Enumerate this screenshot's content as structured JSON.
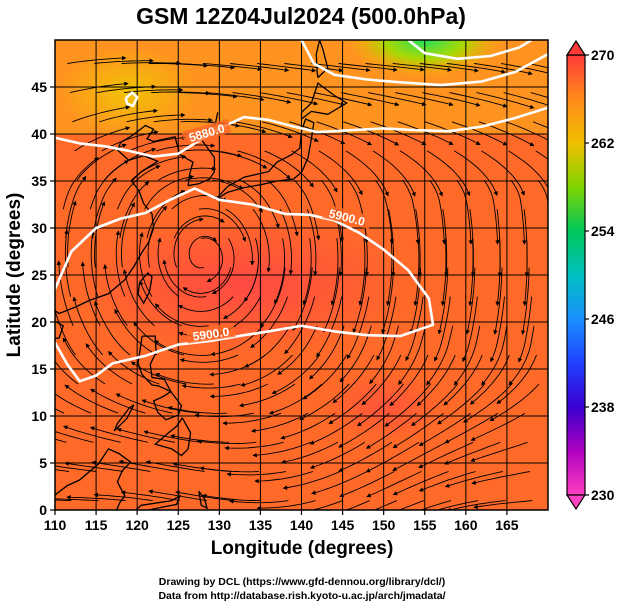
{
  "title": "GSM 12Z04Jul2024 (500.0hPa)",
  "chart_data": {
    "type": "heatmap",
    "title": "GSM 12Z04Jul2024 (500.0hPa)",
    "xlabel": "Longitude (degrees)",
    "ylabel": "Latitude  (degrees)",
    "xlim": [
      110,
      170
    ],
    "ylim": [
      0,
      50
    ],
    "x_ticks": [
      "110",
      "115",
      "120",
      "125",
      "130",
      "135",
      "140",
      "145",
      "150",
      "155",
      "160",
      "165"
    ],
    "y_ticks": [
      "0",
      "5",
      "10",
      "15",
      "20",
      "25",
      "30",
      "35",
      "40",
      "45"
    ],
    "grid": true,
    "colorbar": {
      "min": 230,
      "max": 270,
      "ticks": [
        "270",
        "262",
        "254",
        "246",
        "238",
        "230"
      ],
      "colors": [
        "#ff3a3a",
        "#ff8a1a",
        "#f0c000",
        "#7fd400",
        "#00c85a",
        "#00c0c0",
        "#1a90ff",
        "#2040ff",
        "#3a00d0",
        "#b000c0",
        "#ff40c0"
      ]
    },
    "contours": [
      {
        "label": "5880.0",
        "points": [
          [
            110,
            39.6
          ],
          [
            113,
            39.0
          ],
          [
            116,
            38.7
          ],
          [
            119,
            38.2
          ],
          [
            122,
            37.6
          ],
          [
            125,
            37.9
          ],
          [
            127,
            39.0
          ],
          [
            130,
            40.6
          ],
          [
            133,
            41.8
          ],
          [
            136,
            41.5
          ],
          [
            139,
            40.8
          ],
          [
            142,
            40.2
          ],
          [
            146,
            40.4
          ],
          [
            150,
            40.6
          ],
          [
            154,
            40.4
          ],
          [
            158,
            40.3
          ],
          [
            162,
            40.8
          ],
          [
            166,
            41.7
          ],
          [
            170,
            42.8
          ]
        ]
      },
      {
        "label": "5900.0",
        "points": [
          [
            110,
            23.5
          ],
          [
            112,
            27.5
          ],
          [
            115,
            30.0
          ],
          [
            118,
            31.0
          ],
          [
            121,
            31.6
          ],
          [
            124,
            33.0
          ],
          [
            127,
            34.2
          ],
          [
            130,
            33.0
          ],
          [
            134,
            32.5
          ],
          [
            138,
            31.5
          ],
          [
            141,
            31.4
          ],
          [
            144,
            30.8
          ],
          [
            147,
            29.5
          ],
          [
            150,
            27.7
          ],
          [
            153,
            25.5
          ],
          [
            155.5,
            22.5
          ],
          [
            156,
            19.7
          ],
          [
            152,
            18.5
          ],
          [
            148,
            18.6
          ],
          [
            144,
            19.0
          ],
          [
            140,
            19.6
          ],
          [
            136,
            19.0
          ],
          [
            133,
            18.6
          ],
          [
            129,
            18.0
          ],
          [
            125,
            17.6
          ],
          [
            121,
            16.4
          ],
          [
            117,
            15.6
          ],
          [
            115,
            14.3
          ],
          [
            113,
            13.7
          ],
          [
            111.5,
            15.5
          ],
          [
            110,
            17.8
          ]
        ]
      },
      {
        "label": "",
        "points": [
          [
            140,
            50
          ],
          [
            141.5,
            47.5
          ],
          [
            144,
            46.3
          ],
          [
            148,
            45.8
          ],
          [
            152,
            45.5
          ],
          [
            157,
            45.2
          ],
          [
            162,
            45.6
          ],
          [
            166,
            46.6
          ],
          [
            170,
            48.5
          ]
        ]
      },
      {
        "label": "",
        "points": [
          [
            153,
            50
          ],
          [
            155,
            48.6
          ],
          [
            159,
            48.0
          ],
          [
            163,
            48.3
          ],
          [
            166.5,
            49.2
          ],
          [
            168,
            50
          ]
        ]
      },
      {
        "label": "",
        "points": [
          [
            118.6,
            43.8
          ],
          [
            119.4,
            44.4
          ],
          [
            120.0,
            43.9
          ],
          [
            119.5,
            43.0
          ],
          [
            118.8,
            43.2
          ],
          [
            118.6,
            43.8
          ]
        ]
      }
    ],
    "wind_field": {
      "note": "streamlines",
      "anticyclone_center": [
        128,
        27
      ]
    }
  },
  "credits": {
    "line1": "Drawing by DCL (https://www.gfd-dennou.org/library/dcl/)",
    "line2": "Data from http://database.rish.kyoto-u.ac.jp/arch/jmadata/"
  }
}
